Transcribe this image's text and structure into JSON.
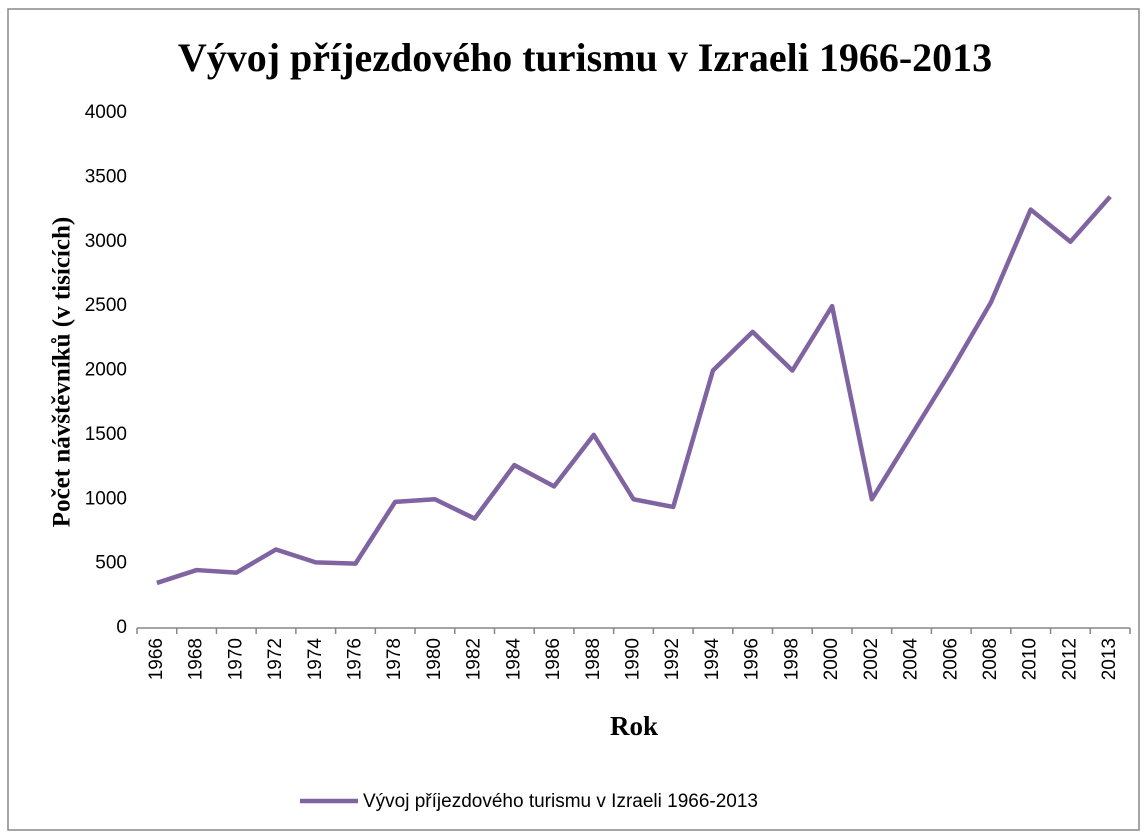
{
  "chart_data": {
    "type": "line",
    "title": "Vývoj příjezdového turismu v Izraeli 1966-2013",
    "y_label": "Počet návštěvníků (v tisících)",
    "x_label": "Rok",
    "categories": [
      "1966",
      "1968",
      "1970",
      "1972",
      "1974",
      "1976",
      "1978",
      "1980",
      "1982",
      "1984",
      "1986",
      "1988",
      "1990",
      "1992",
      "1994",
      "1996",
      "1998",
      "2000",
      "2002",
      "2004",
      "2006",
      "2008",
      "2010",
      "2012",
      "2013"
    ],
    "series": [
      {
        "name": "Vývoj příjezdového turismu v Izraeli 1966-2013",
        "color": "#8064a2",
        "values": [
          350,
          450,
          430,
          610,
          510,
          500,
          980,
          1000,
          850,
          1265,
          1100,
          1500,
          1000,
          940,
          2000,
          2300,
          2000,
          2500,
          1000,
          1500,
          2000,
          2530,
          3250,
          3000,
          3350
        ]
      }
    ],
    "ylim": [
      0,
      4000
    ],
    "yticks": [
      0,
      500,
      1000,
      1500,
      2000,
      2500,
      3000,
      3500,
      4000
    ],
    "grid": false,
    "legend": "bottom"
  }
}
